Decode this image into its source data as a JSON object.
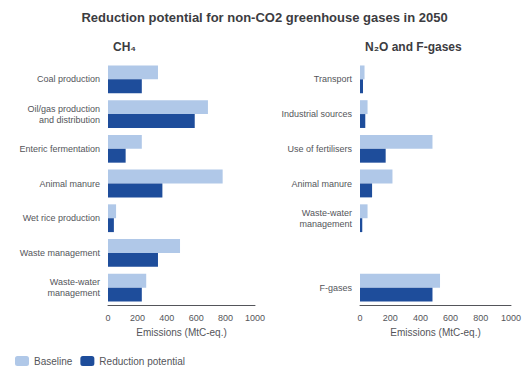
{
  "chart_data": [
    {
      "type": "bar",
      "title": "Reduction potential for non-CO2 greenhouse gases in 2050",
      "subtitle": "CH₄",
      "orientation": "horizontal",
      "categories": [
        "Coal production",
        "Oil/gas production\nand distribution",
        "Enteric fermentation",
        "Animal manure",
        "Wet rice production",
        "Waste management",
        "Waste-water\nmanagement"
      ],
      "series": [
        {
          "name": "Baseline",
          "color": "#b0c8e8",
          "values": [
            340,
            680,
            230,
            780,
            55,
            490,
            260
          ]
        },
        {
          "name": "Reduction potential",
          "color": "#1e4d9b",
          "values": [
            230,
            590,
            120,
            370,
            40,
            340,
            230
          ]
        }
      ],
      "xlabel": "Emissions (MtC-eq.)",
      "xlim": [
        0,
        1000
      ],
      "xticks": [
        0,
        200,
        400,
        600,
        800,
        1000
      ],
      "grid": false,
      "legend": "lower left"
    },
    {
      "type": "bar",
      "subtitle": "N₂O and F-gases",
      "orientation": "horizontal",
      "categories": [
        "Transport",
        "Industrial sources",
        "Use of fertilisers",
        "Animal manure",
        "Waste-water\nmanagement",
        null,
        "F-gases"
      ],
      "series": [
        {
          "name": "Baseline",
          "color": "#b0c8e8",
          "values": [
            30,
            50,
            480,
            215,
            50,
            0,
            530
          ]
        },
        {
          "name": "Reduction potential",
          "color": "#1e4d9b",
          "values": [
            20,
            35,
            170,
            80,
            15,
            0,
            480
          ]
        }
      ],
      "xlabel": "Emissions (MtC-eq.)",
      "xlim": [
        0,
        1000
      ],
      "xticks": [
        0,
        200,
        400,
        600,
        800,
        1000
      ],
      "grid": false
    }
  ]
}
